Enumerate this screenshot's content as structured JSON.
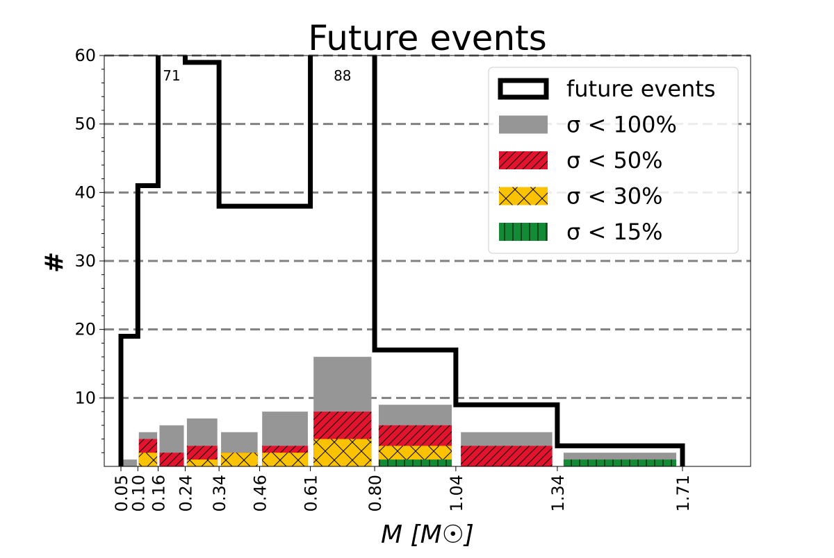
{
  "chart_data": {
    "type": "bar",
    "title": "Future events",
    "xlabel": "M [M☉]",
    "ylabel": "#",
    "ylim": [
      0,
      60
    ],
    "xlim": [
      0.05,
      1.71
    ],
    "yticks": [
      "10",
      "20",
      "30",
      "40",
      "50",
      "60"
    ],
    "xticks": [
      "0.05",
      "0.10",
      "0.16",
      "0.24",
      "0.34",
      "0.46",
      "0.61",
      "0.80",
      "1.04",
      "1.34",
      "1.71"
    ],
    "bin_edges": [
      0.05,
      0.1,
      0.16,
      0.24,
      0.34,
      0.46,
      0.61,
      0.8,
      1.04,
      1.34,
      1.71
    ],
    "grid": "horizontal dashed",
    "legend_position": "top-right",
    "step_series": {
      "name": "future events",
      "values": [
        19,
        41,
        71,
        59,
        38,
        38,
        88,
        17,
        9,
        3
      ],
      "color": "#000000"
    },
    "series": [
      {
        "name": "σ < 100%",
        "values": [
          1,
          5,
          6,
          7,
          5,
          8,
          16,
          9,
          5,
          2
        ],
        "color": "#969696",
        "hatch": "none"
      },
      {
        "name": "σ < 50%",
        "values": [
          0,
          4,
          2,
          3,
          2,
          3,
          8,
          6,
          3,
          0
        ],
        "color": "#e3132e",
        "hatch": "diagonal"
      },
      {
        "name": "σ < 30%",
        "values": [
          0,
          2,
          0,
          1,
          2,
          2,
          4,
          3,
          0,
          0
        ],
        "color": "#fbc200",
        "hatch": "cross"
      },
      {
        "name": "σ < 15%",
        "values": [
          0,
          0,
          0,
          0,
          0,
          0,
          0,
          1,
          0,
          1
        ],
        "color": "#138a36",
        "hatch": "vertical"
      }
    ],
    "annotations": [
      "71",
      "88"
    ]
  }
}
